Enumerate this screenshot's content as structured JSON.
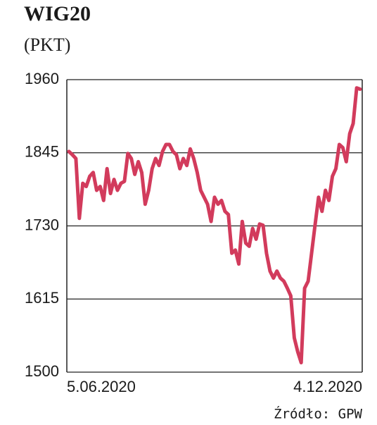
{
  "chart_data": {
    "type": "line",
    "title": "WIG20",
    "subtitle": "(PKT)",
    "categories": [
      "5.06.2020",
      null,
      null,
      null,
      null,
      null,
      null,
      null,
      null,
      null,
      null,
      null,
      null,
      null,
      null,
      null,
      null,
      null,
      null,
      null,
      null,
      null,
      null,
      null,
      null,
      null,
      null,
      null,
      null,
      null,
      null,
      null,
      null,
      null,
      null,
      null,
      null,
      null,
      null,
      null,
      null,
      null,
      null,
      null,
      null,
      null,
      null,
      null,
      null,
      null,
      null,
      null,
      null,
      null,
      null,
      null,
      null,
      null,
      null,
      null,
      null,
      null,
      null,
      null,
      null,
      null,
      null,
      null,
      null,
      null,
      null,
      null,
      null,
      null,
      null,
      null,
      null,
      null,
      null,
      null,
      null,
      null,
      null,
      null,
      "4.12.2020"
    ],
    "series": [
      {
        "name": "WIG20",
        "color": "#d23b5c",
        "values": [
          1847,
          1842,
          1836,
          1742,
          1797,
          1792,
          1808,
          1814,
          1786,
          1792,
          1770,
          1820,
          1781,
          1803,
          1786,
          1797,
          1800,
          1844,
          1836,
          1811,
          1831,
          1814,
          1764,
          1786,
          1820,
          1836,
          1825,
          1847,
          1858,
          1858,
          1847,
          1842,
          1820,
          1836,
          1825,
          1851,
          1836,
          1814,
          1786,
          1775,
          1764,
          1737,
          1775,
          1764,
          1770,
          1753,
          1748,
          1687,
          1692,
          1670,
          1737,
          1703,
          1698,
          1726,
          1709,
          1733,
          1731,
          1687,
          1659,
          1648,
          1659,
          1648,
          1643,
          1632,
          1620,
          1554,
          1532,
          1515,
          1632,
          1643,
          1687,
          1731,
          1775,
          1753,
          1786,
          1770,
          1808,
          1820,
          1858,
          1853,
          1831,
          1875,
          1891,
          1947,
          1945
        ]
      }
    ],
    "ylim": [
      1500,
      1960
    ],
    "yticks": [
      1500,
      1615,
      1730,
      1845,
      1960
    ],
    "grid": true,
    "source": "Źródło: GPW"
  }
}
